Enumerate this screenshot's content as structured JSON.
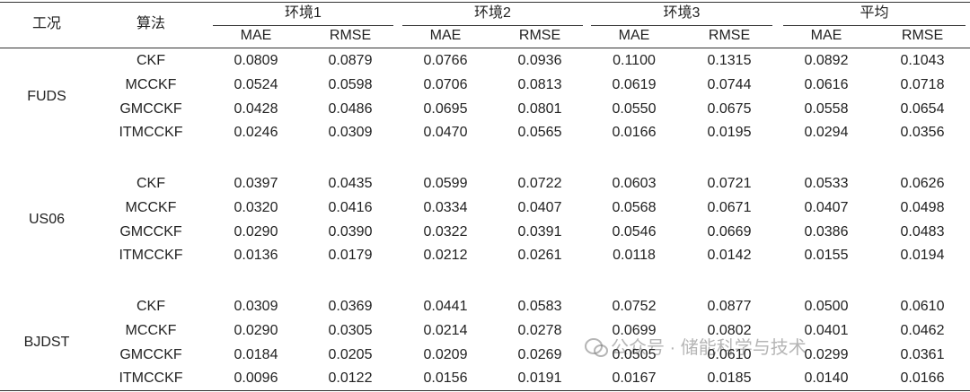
{
  "header": {
    "columns": [
      "工况",
      "算法"
    ],
    "groups": [
      {
        "label": "环境1",
        "sub": [
          "MAE",
          "RMSE"
        ]
      },
      {
        "label": "环境2",
        "sub": [
          "MAE",
          "RMSE"
        ]
      },
      {
        "label": "环境3",
        "sub": [
          "MAE",
          "RMSE"
        ]
      },
      {
        "label": "平均",
        "sub": [
          "MAE",
          "RMSE"
        ]
      }
    ]
  },
  "table": {
    "sections": [
      {
        "condition": "FUDS",
        "rows": [
          {
            "algorithm": "CKF",
            "cells": [
              "0.0809",
              "0.0879",
              "0.0766",
              "0.0936",
              "0.1100",
              "0.1315",
              "0.0892",
              "0.1043"
            ]
          },
          {
            "algorithm": "MCCKF",
            "cells": [
              "0.0524",
              "0.0598",
              "0.0706",
              "0.0813",
              "0.0619",
              "0.0744",
              "0.0616",
              "0.0718"
            ]
          },
          {
            "algorithm": "GMCCKF",
            "cells": [
              "0.0428",
              "0.0486",
              "0.0695",
              "0.0801",
              "0.0550",
              "0.0675",
              "0.0558",
              "0.0654"
            ]
          },
          {
            "algorithm": "ITMCCKF",
            "cells": [
              "0.0246",
              "0.0309",
              "0.0470",
              "0.0565",
              "0.0166",
              "0.0195",
              "0.0294",
              "0.0356"
            ]
          }
        ]
      },
      {
        "condition": "US06",
        "rows": [
          {
            "algorithm": "CKF",
            "cells": [
              "0.0397",
              "0.0435",
              "0.0599",
              "0.0722",
              "0.0603",
              "0.0721",
              "0.0533",
              "0.0626"
            ]
          },
          {
            "algorithm": "MCCKF",
            "cells": [
              "0.0320",
              "0.0416",
              "0.0334",
              "0.0407",
              "0.0568",
              "0.0671",
              "0.0407",
              "0.0498"
            ]
          },
          {
            "algorithm": "GMCCKF",
            "cells": [
              "0.0290",
              "0.0390",
              "0.0322",
              "0.0391",
              "0.0546",
              "0.0669",
              "0.0386",
              "0.0483"
            ]
          },
          {
            "algorithm": "ITMCCKF",
            "cells": [
              "0.0136",
              "0.0179",
              "0.0212",
              "0.0261",
              "0.0118",
              "0.0142",
              "0.0155",
              "0.0194"
            ]
          }
        ]
      },
      {
        "condition": "BJDST",
        "rows": [
          {
            "algorithm": "CKF",
            "cells": [
              "0.0309",
              "0.0369",
              "0.0441",
              "0.0583",
              "0.0752",
              "0.0877",
              "0.0500",
              "0.0610"
            ]
          },
          {
            "algorithm": "MCCKF",
            "cells": [
              "0.0290",
              "0.0305",
              "0.0214",
              "0.0278",
              "0.0699",
              "0.0802",
              "0.0401",
              "0.0462"
            ]
          },
          {
            "algorithm": "GMCCKF",
            "cells": [
              "0.0184",
              "0.0205",
              "0.0209",
              "0.0269",
              "0.0505",
              "0.0610",
              "0.0299",
              "0.0361"
            ]
          },
          {
            "algorithm": "ITMCCKF",
            "cells": [
              "0.0096",
              "0.0122",
              "0.0156",
              "0.0191",
              "0.0167",
              "0.0185",
              "0.0140",
              "0.0166"
            ]
          }
        ]
      }
    ]
  },
  "watermark": "公众号 · 储能科学与技术"
}
